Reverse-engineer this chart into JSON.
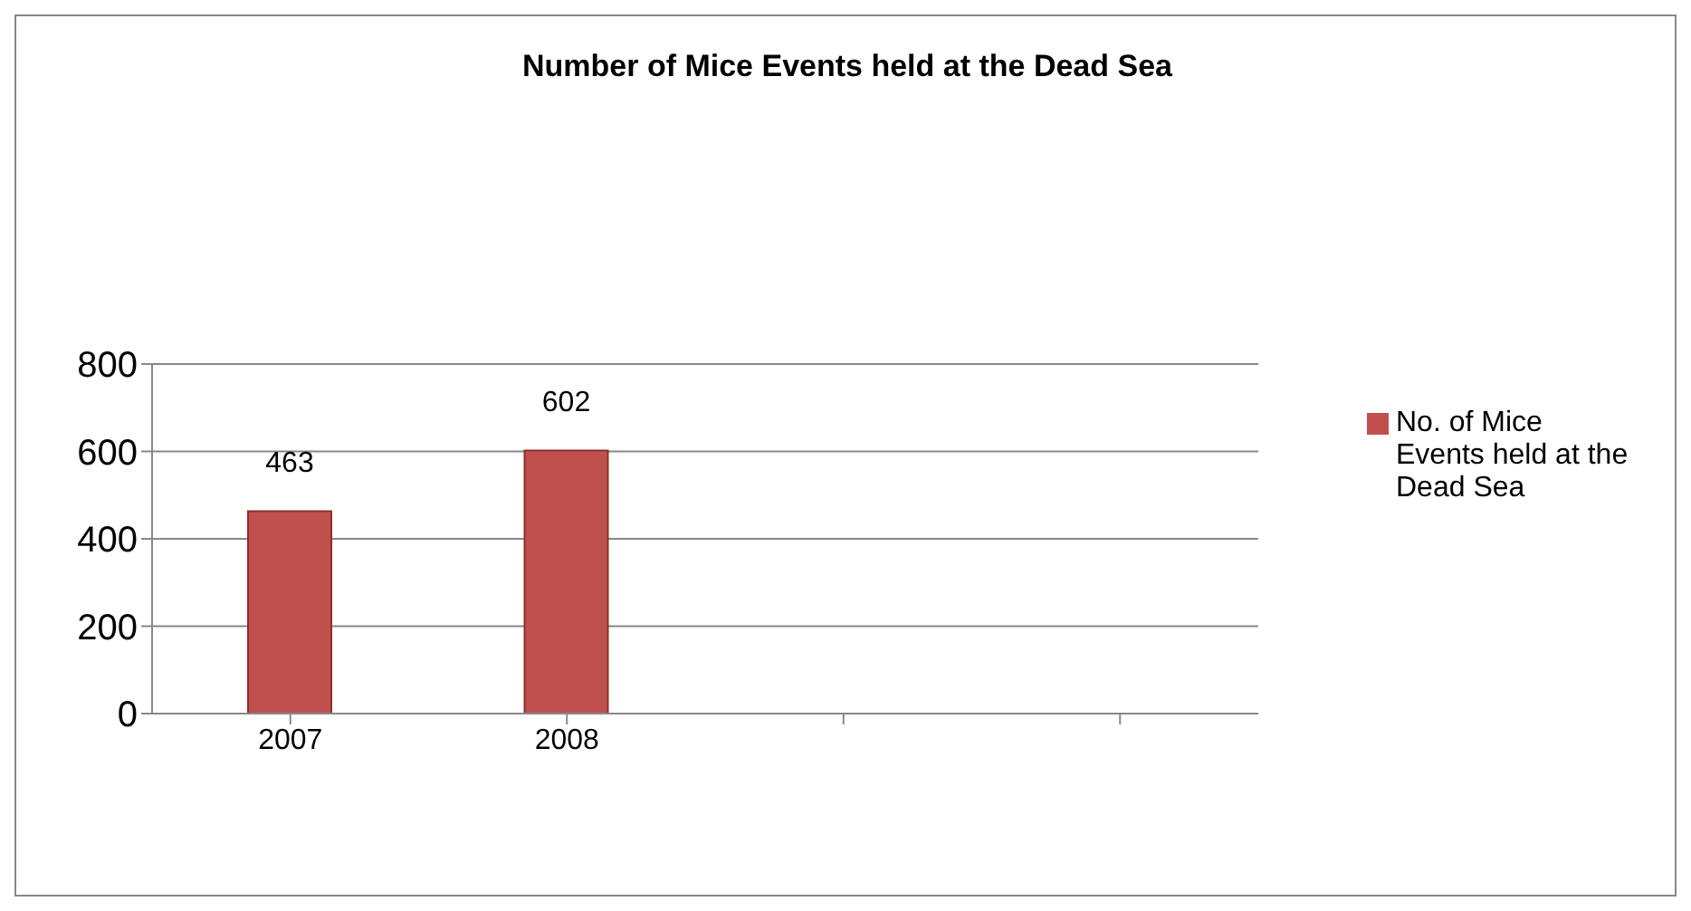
{
  "chart_data": {
    "type": "bar",
    "title": "Number of Mice Events held at the Dead Sea",
    "categories": [
      "2007",
      "2008",
      null,
      null
    ],
    "series": [
      {
        "name": "No. of Mice Events held at the Dead Sea",
        "color": "#c0504d",
        "values": [
          463,
          602,
          null,
          null
        ]
      }
    ],
    "ylim": [
      0,
      800
    ],
    "yticks": [
      0,
      200,
      400,
      600,
      800
    ],
    "grid": "y",
    "legend": "right",
    "data_labels": true
  }
}
